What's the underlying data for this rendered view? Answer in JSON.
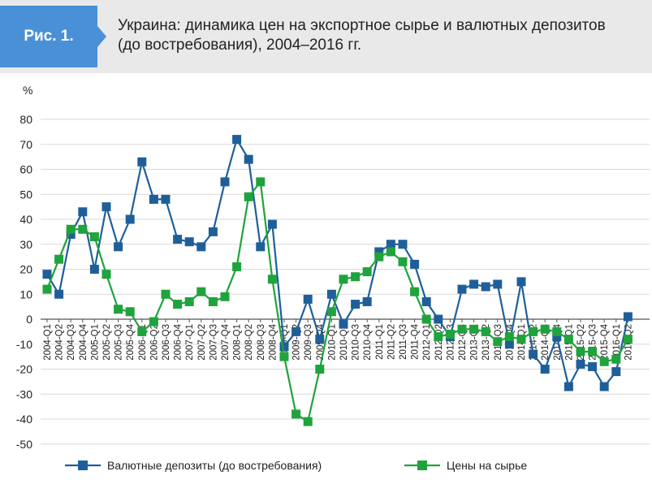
{
  "header": {
    "figure_label": "Рис. 1.",
    "title_line1": "Украина: динамика цен на экспортное сырье и валютных депозитов",
    "title_line2": "(до востребования), 2004–2016 гг."
  },
  "colors": {
    "header_bg": "#e9e9e9",
    "badge": "#4a90d6",
    "deposits": "#1f5f99",
    "prices": "#1fa33c",
    "grid": "#d9d9d9"
  },
  "chart_data": {
    "type": "line",
    "ylabel": "%",
    "ylim": [
      -50,
      80
    ],
    "yticks": [
      80,
      70,
      60,
      50,
      40,
      30,
      20,
      10,
      0,
      -10,
      -20,
      -30,
      -40,
      -50
    ],
    "grid": true,
    "legend_position": "bottom",
    "categories": [
      "2004-Q1",
      "2004-Q2",
      "2004-Q3",
      "2004-Q4",
      "2005-Q1",
      "2005-Q2",
      "2005-Q3",
      "2005-Q4",
      "2006-Q1",
      "2006-Q2",
      "2006-Q3",
      "2006-Q4",
      "2007-Q1",
      "2007-Q2",
      "2007-Q3",
      "2007-Q4",
      "2008-Q1",
      "2008-Q2",
      "2008-Q3",
      "2008-Q4",
      "2009-Q1",
      "2009-Q2",
      "2009-Q3",
      "2009-Q4",
      "2010-Q1",
      "2010-Q2",
      "2010-Q3",
      "2010-Q4",
      "2011-Q1",
      "2011-Q2",
      "2011-Q3",
      "2011-Q4",
      "2012-Q1",
      "2012-Q2",
      "2012-Q3",
      "2012-Q4",
      "2013-Q1",
      "2013-Q2",
      "2013-Q3",
      "2013-Q4",
      "2014-Q1",
      "2014-Q2",
      "2014-Q3",
      "2014-Q4",
      "2015-Q1",
      "2015-Q2",
      "2015-Q3",
      "2015-Q4",
      "2016-Q1",
      "2016-Q2"
    ],
    "series": [
      {
        "name": "Валютные депозиты (до востребования)",
        "color": "#1f5f99",
        "values": [
          18,
          10,
          34,
          43,
          20,
          45,
          29,
          40,
          63,
          48,
          48,
          32,
          31,
          29,
          35,
          55,
          72,
          64,
          29,
          38,
          -11,
          -5,
          8,
          -8,
          10,
          -2,
          6,
          7,
          27,
          30,
          30,
          22,
          7,
          0,
          -7,
          12,
          14,
          13,
          14,
          -10,
          15,
          -14,
          -20,
          -7,
          -27,
          -18,
          -19,
          -27,
          -21,
          1
        ]
      },
      {
        "name": "Цены на сырье",
        "color": "#1fa33c",
        "values": [
          12,
          24,
          36,
          36,
          33,
          18,
          4,
          3,
          -5,
          -1,
          10,
          6,
          7,
          11,
          7,
          9,
          21,
          49,
          55,
          16,
          -15,
          -38,
          -41,
          -20,
          3,
          16,
          17,
          19,
          25,
          27,
          23,
          11,
          0,
          -7,
          -6,
          -4,
          -4,
          -5,
          -9,
          -7,
          -8,
          -5,
          -4,
          -5,
          -8,
          -13,
          -13,
          -17,
          -16,
          -8
        ]
      }
    ]
  },
  "legend": [
    {
      "label": "Валютные депозиты (до востребования)",
      "color": "#1f5f99"
    },
    {
      "label": "Цены на сырье",
      "color": "#1fa33c"
    }
  ]
}
